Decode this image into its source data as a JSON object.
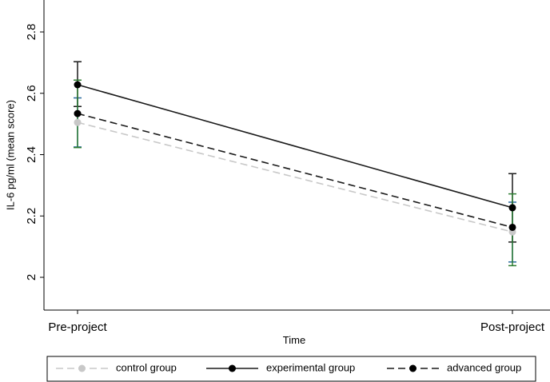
{
  "chart_data": {
    "type": "line",
    "title": "",
    "xlabel": "Time",
    "ylabel": "IL-6 pg/ml (mean score)",
    "categories": [
      "Pre-project",
      "Post-project"
    ],
    "ylim": [
      1.89,
      2.93
    ],
    "yticks": [
      "2",
      "2.2",
      "2.4",
      "2.6",
      "2.8"
    ],
    "grid": false,
    "legend_position": "bottom",
    "series": [
      {
        "name": "control group",
        "values": [
          2.505,
          2.148
        ],
        "ci_low": [
          2.425,
          2.05
        ],
        "ci_high": [
          2.585,
          2.245
        ],
        "line_color": "#c8c8c8",
        "marker_color": "#c8c8c8",
        "dash": "dashed",
        "ci_color": "#2a6a9e"
      },
      {
        "name": "experimental group",
        "values": [
          2.628,
          2.227
        ],
        "ci_low": [
          2.557,
          2.115
        ],
        "ci_high": [
          2.703,
          2.338
        ],
        "line_color": "#1a1a1a",
        "marker_color": "#000000",
        "dash": "solid",
        "ci_color": "#1a1a1a"
      },
      {
        "name": "advanced group",
        "values": [
          2.534,
          2.163
        ],
        "ci_low": [
          2.423,
          2.038
        ],
        "ci_high": [
          2.643,
          2.272
        ],
        "line_color": "#1a1a1a",
        "marker_color": "#000000",
        "dash": "dashed",
        "ci_color": "#2e7d32"
      }
    ]
  }
}
